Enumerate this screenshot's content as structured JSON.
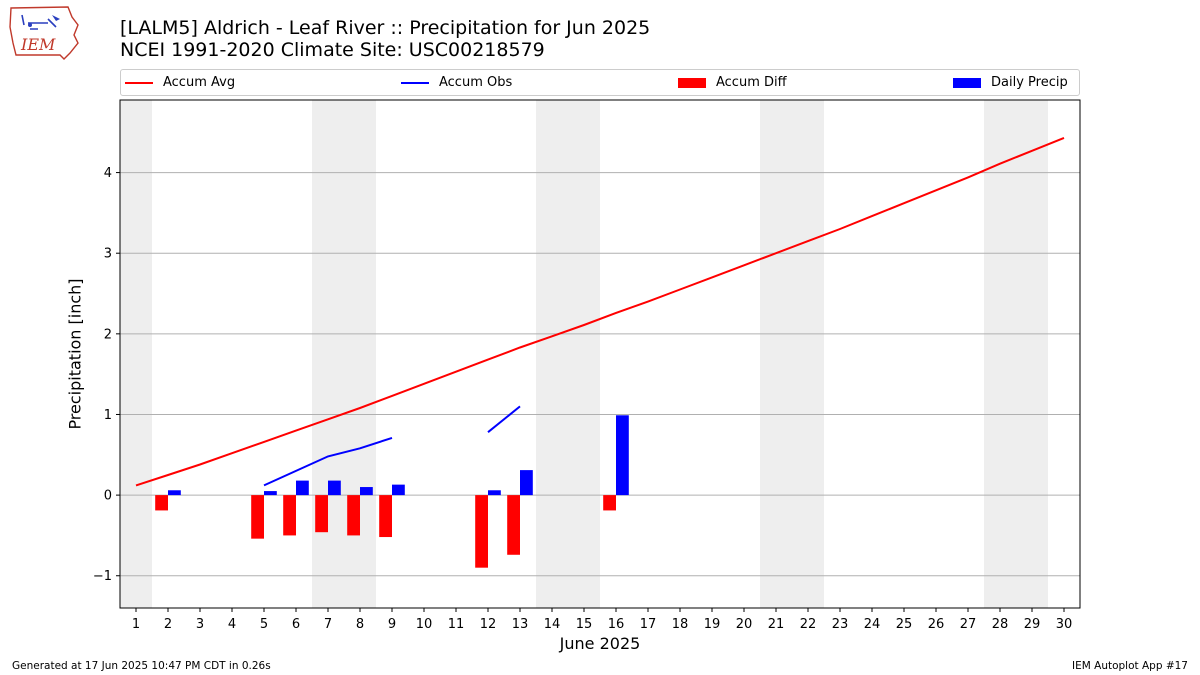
{
  "header": {
    "title_line1": "[LALM5] Aldrich - Leaf River :: Precipitation for Jun 2025",
    "title_line2": "NCEI 1991-2020 Climate Site: USC00218579",
    "logo_text": "IEM"
  },
  "footer": {
    "generated": "Generated at 17 Jun 2025 10:47 PM CDT in 0.26s",
    "app": "IEM Autoplot App #17"
  },
  "legend": {
    "accum_avg": "Accum Avg",
    "accum_obs": "Accum Obs",
    "accum_diff": "Accum Diff",
    "daily_precip": "Daily Precip"
  },
  "colors": {
    "accum_avg": "#ff0000",
    "accum_obs": "#0000ff",
    "accum_diff": "#ff0000",
    "daily_precip": "#0000ff",
    "weekend_shade": "#eeeeee",
    "grid": "#b0b0b0"
  },
  "chart_data": {
    "type": "bar",
    "xlabel": "June 2025",
    "ylabel": "Precipitation [inch]",
    "x": [
      1,
      2,
      3,
      4,
      5,
      6,
      7,
      8,
      9,
      10,
      11,
      12,
      13,
      14,
      15,
      16,
      17,
      18,
      19,
      20,
      21,
      22,
      23,
      24,
      25,
      26,
      27,
      28,
      29,
      30
    ],
    "xlim": [
      0.5,
      30.5
    ],
    "ylim": [
      -1.4,
      4.9
    ],
    "yticks": [
      -1,
      0,
      1,
      2,
      3,
      4
    ],
    "grid": "horizontal",
    "legend_position": "top",
    "weekend_shaded_days": [
      [
        1
      ],
      [
        7,
        8
      ],
      [
        14,
        15
      ],
      [
        21,
        22
      ],
      [
        28,
        29
      ]
    ],
    "series": [
      {
        "name": "Accum Avg",
        "kind": "line",
        "x": [
          1,
          2,
          3,
          4,
          5,
          6,
          7,
          8,
          9,
          10,
          11,
          12,
          13,
          14,
          15,
          16,
          17,
          18,
          19,
          20,
          21,
          22,
          23,
          24,
          25,
          26,
          27,
          28,
          29,
          30
        ],
        "values": [
          0.12,
          0.25,
          0.38,
          0.52,
          0.66,
          0.8,
          0.94,
          1.08,
          1.23,
          1.38,
          1.53,
          1.68,
          1.83,
          1.97,
          2.11,
          2.26,
          2.4,
          2.55,
          2.7,
          2.85,
          3.0,
          3.15,
          3.3,
          3.46,
          3.62,
          3.78,
          3.94,
          4.11,
          4.27,
          4.43
        ]
      },
      {
        "name": "Accum Obs",
        "kind": "line",
        "x": [
          1,
          2,
          3,
          4,
          5,
          6,
          7,
          8,
          9,
          10,
          11,
          12,
          13,
          14,
          15,
          16,
          17,
          18,
          19,
          20,
          21,
          22,
          23,
          24,
          25,
          26,
          27,
          28,
          29,
          30
        ],
        "values": [
          null,
          null,
          null,
          null,
          0.12,
          0.3,
          0.48,
          0.58,
          0.71,
          null,
          null,
          0.78,
          1.1,
          null,
          null,
          null,
          null,
          null,
          null,
          null,
          null,
          null,
          null,
          null,
          null,
          null,
          null,
          null,
          null,
          null
        ]
      },
      {
        "name": "Accum Diff",
        "kind": "bar",
        "x": [
          2,
          5,
          6,
          7,
          8,
          9,
          12,
          13,
          16
        ],
        "values": [
          -0.19,
          -0.54,
          -0.5,
          -0.46,
          -0.5,
          -0.52,
          -0.9,
          -0.74,
          -0.19
        ]
      },
      {
        "name": "Daily Precip",
        "kind": "bar",
        "x": [
          2,
          5,
          6,
          7,
          8,
          9,
          12,
          13,
          16
        ],
        "values": [
          0.06,
          0.05,
          0.18,
          0.18,
          0.1,
          0.13,
          0.06,
          0.31,
          0.99
        ]
      }
    ]
  }
}
